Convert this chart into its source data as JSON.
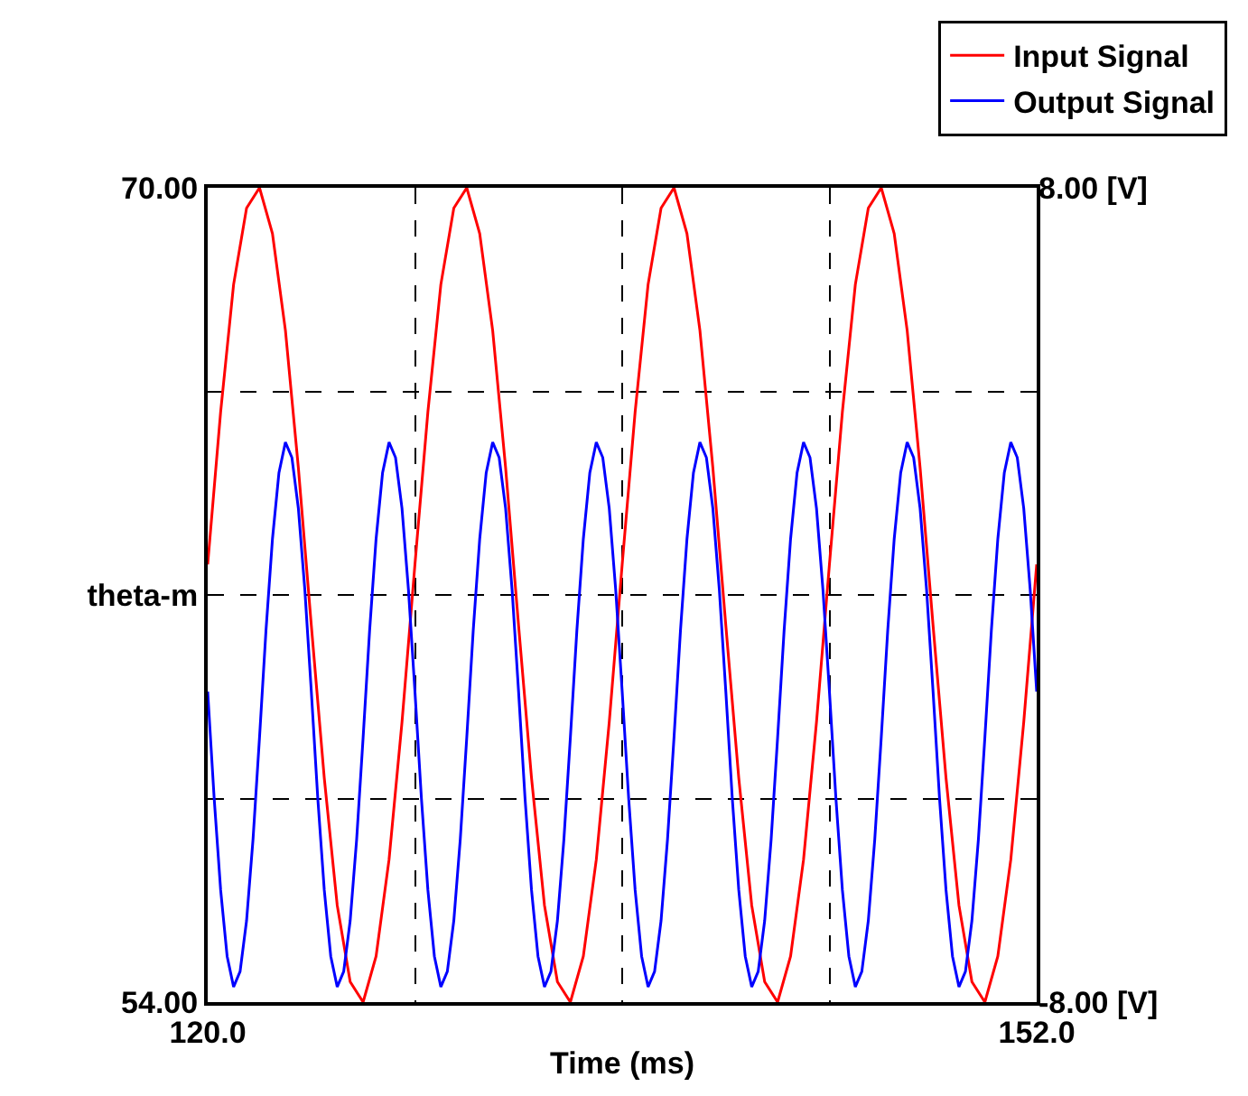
{
  "chart_data": {
    "type": "line",
    "xlabel": "Time (ms)",
    "xlim": [
      120,
      152
    ],
    "xticks": [
      {
        "value": 120,
        "label": "120.0"
      },
      {
        "value": 128,
        "label": null
      },
      {
        "value": 136,
        "label": null
      },
      {
        "value": 144,
        "label": null
      },
      {
        "value": 152,
        "label": "152.0"
      }
    ],
    "ylim": [
      54,
      70
    ],
    "yticks": [
      {
        "value": 54,
        "label": "54.00"
      },
      {
        "value": 58,
        "label": null
      },
      {
        "value": 62,
        "label": "theta-m"
      },
      {
        "value": 66,
        "label": null
      },
      {
        "value": 70,
        "label": "70.00"
      }
    ],
    "y2lim": [
      -8,
      8
    ],
    "y2ticks": [
      {
        "value": -8,
        "label": "-8.00 [V]"
      },
      {
        "value": 8,
        "label": "8.00 [V]"
      }
    ],
    "grid": true,
    "legend": "top right",
    "line_style": "solid",
    "marker": "none",
    "series": [
      {
        "name": "Input Signal",
        "color": "#ff0000",
        "x": [
          120,
          120.5,
          121,
          121.5,
          122,
          122.5,
          123,
          123.5,
          124,
          124.5,
          125,
          125.5,
          126,
          126.5,
          127,
          127.5,
          128,
          128.5,
          129,
          129.5,
          130,
          130.5,
          131,
          131.5,
          132,
          132.5,
          133,
          133.5,
          134,
          134.5,
          135,
          135.5,
          136,
          136.5,
          137,
          137.5,
          138,
          138.5,
          139,
          139.5,
          140,
          140.5,
          141,
          141.5,
          142,
          142.5,
          143,
          143.5,
          144,
          144.5,
          145,
          145.5,
          146,
          146.5,
          147,
          147.5,
          148,
          148.5,
          149,
          149.5,
          150,
          150.5,
          151,
          151.5,
          152
        ],
        "values": [
          62.6,
          65.6,
          68.1,
          69.6,
          70.0,
          69.1,
          67.2,
          64.5,
          61.4,
          58.4,
          55.9,
          54.4,
          54.0,
          54.9,
          56.8,
          59.5,
          62.6,
          65.6,
          68.1,
          69.6,
          70.0,
          69.1,
          67.2,
          64.5,
          61.4,
          58.4,
          55.9,
          54.4,
          54.0,
          54.9,
          56.8,
          59.5,
          62.6,
          65.6,
          68.1,
          69.6,
          70.0,
          69.1,
          67.2,
          64.5,
          61.4,
          58.4,
          55.9,
          54.4,
          54.0,
          54.9,
          56.8,
          59.5,
          62.6,
          65.6,
          68.1,
          69.6,
          70.0,
          69.1,
          67.2,
          64.5,
          61.4,
          58.4,
          55.9,
          54.4,
          54.0,
          54.9,
          56.8,
          59.5,
          62.6
        ]
      },
      {
        "name": "Output Signal",
        "color": "#0000ff",
        "axis": "y2",
        "x": [
          120,
          120.25,
          120.5,
          120.75,
          121,
          121.25,
          121.5,
          121.75,
          122,
          122.25,
          122.5,
          122.75,
          123,
          123.25,
          123.5,
          123.75,
          124,
          124.25,
          124.5,
          124.75,
          125,
          125.25,
          125.5,
          125.75,
          126,
          126.25,
          126.5,
          126.75,
          127,
          127.25,
          127.5,
          127.75,
          128,
          128.25,
          128.5,
          128.75,
          129,
          129.25,
          129.5,
          129.75,
          130,
          130.25,
          130.5,
          130.75,
          131,
          131.25,
          131.5,
          131.75,
          132,
          132.25,
          132.5,
          132.75,
          133,
          133.25,
          133.5,
          133.75,
          134,
          134.25,
          134.5,
          134.75,
          135,
          135.25,
          135.5,
          135.75,
          136,
          136.25,
          136.5,
          136.75,
          137,
          137.25,
          137.5,
          137.75,
          138,
          138.25,
          138.5,
          138.75,
          139,
          139.25,
          139.5,
          139.75,
          140,
          140.25,
          140.5,
          140.75,
          141,
          141.25,
          141.5,
          141.75,
          142,
          142.25,
          142.5,
          142.75,
          143,
          143.25,
          143.5,
          143.75,
          144,
          144.25,
          144.5,
          144.75,
          145,
          145.25,
          145.5,
          145.75,
          146,
          146.25,
          146.5,
          146.75,
          147,
          147.25,
          147.5,
          147.75,
          148,
          148.25,
          148.5,
          148.75,
          149,
          149.25,
          149.5,
          149.75,
          150,
          150.25,
          150.5,
          150.75,
          151,
          151.25,
          151.5,
          151.75,
          152
        ],
        "values": [
          -1.9,
          -4.0,
          -5.8,
          -7.1,
          -7.7,
          -7.4,
          -6.4,
          -4.8,
          -2.8,
          -0.7,
          1.1,
          2.4,
          3.0,
          2.7,
          1.7,
          0.1,
          -1.9,
          -4.0,
          -5.8,
          -7.1,
          -7.7,
          -7.4,
          -6.4,
          -4.8,
          -2.8,
          -0.7,
          1.1,
          2.4,
          3.0,
          2.7,
          1.7,
          0.1,
          -1.9,
          -4.0,
          -5.8,
          -7.1,
          -7.7,
          -7.4,
          -6.4,
          -4.8,
          -2.8,
          -0.7,
          1.1,
          2.4,
          3.0,
          2.7,
          1.7,
          0.1,
          -1.9,
          -4.0,
          -5.8,
          -7.1,
          -7.7,
          -7.4,
          -6.4,
          -4.8,
          -2.8,
          -0.7,
          1.1,
          2.4,
          3.0,
          2.7,
          1.7,
          0.1,
          -1.9,
          -4.0,
          -5.8,
          -7.1,
          -7.7,
          -7.4,
          -6.4,
          -4.8,
          -2.8,
          -0.7,
          1.1,
          2.4,
          3.0,
          2.7,
          1.7,
          0.1,
          -1.9,
          -4.0,
          -5.8,
          -7.1,
          -7.7,
          -7.4,
          -6.4,
          -4.8,
          -2.8,
          -0.7,
          1.1,
          2.4,
          3.0,
          2.7,
          1.7,
          0.1,
          -1.9,
          -4.0,
          -5.8,
          -7.1,
          -7.7,
          -7.4,
          -6.4,
          -4.8,
          -2.8,
          -0.7,
          1.1,
          2.4,
          3.0,
          2.7,
          1.7,
          0.1,
          -1.9,
          -4.0,
          -5.8,
          -7.1,
          -7.7,
          -7.4,
          -6.4,
          -4.8,
          -2.8,
          -0.7,
          1.1,
          2.4,
          3.0,
          2.7,
          1.7,
          0.1,
          -1.9
        ]
      }
    ]
  }
}
